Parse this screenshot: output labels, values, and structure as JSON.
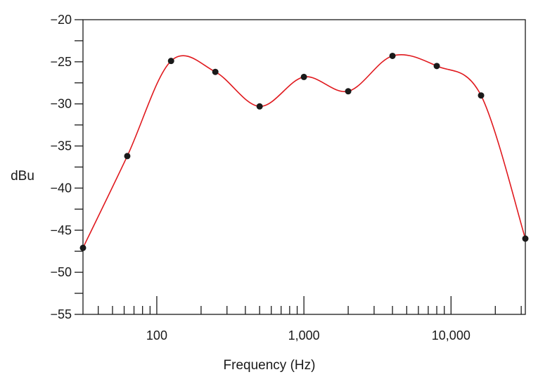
{
  "chart_data": {
    "type": "line",
    "title": "",
    "xlabel": "Frequency (Hz)",
    "ylabel": "dBu",
    "x_scale": "log",
    "xlim": [
      31.5,
      32000
    ],
    "ylim": [
      -55,
      -20
    ],
    "x_tick_labels": [
      {
        "value": 100,
        "label": "100"
      },
      {
        "value": 1000,
        "label": "1,000"
      },
      {
        "value": 10000,
        "label": "10,000"
      }
    ],
    "y_tick_labels": [
      {
        "value": -20,
        "label": "−20"
      },
      {
        "value": -25,
        "label": "−25"
      },
      {
        "value": -30,
        "label": "−30"
      },
      {
        "value": -35,
        "label": "−35"
      },
      {
        "value": -40,
        "label": "−40"
      },
      {
        "value": -45,
        "label": "−45"
      },
      {
        "value": -50,
        "label": "−50"
      },
      {
        "value": -55,
        "label": "−55"
      }
    ],
    "y_minor_step": 2.5,
    "grid": false,
    "series": [
      {
        "color": "#e0191e",
        "marker_color": "#1a1a1a",
        "points": [
          {
            "x": 31.5,
            "y": -47.1
          },
          {
            "x": 63,
            "y": -36.2
          },
          {
            "x": 125,
            "y": -24.9
          },
          {
            "x": 250,
            "y": -26.2
          },
          {
            "x": 500,
            "y": -30.3
          },
          {
            "x": 1000,
            "y": -26.8
          },
          {
            "x": 2000,
            "y": -28.5
          },
          {
            "x": 4000,
            "y": -24.3
          },
          {
            "x": 8000,
            "y": -25.5
          },
          {
            "x": 16000,
            "y": -29.0
          },
          {
            "x": 32000,
            "y": -46.0
          }
        ]
      }
    ]
  }
}
